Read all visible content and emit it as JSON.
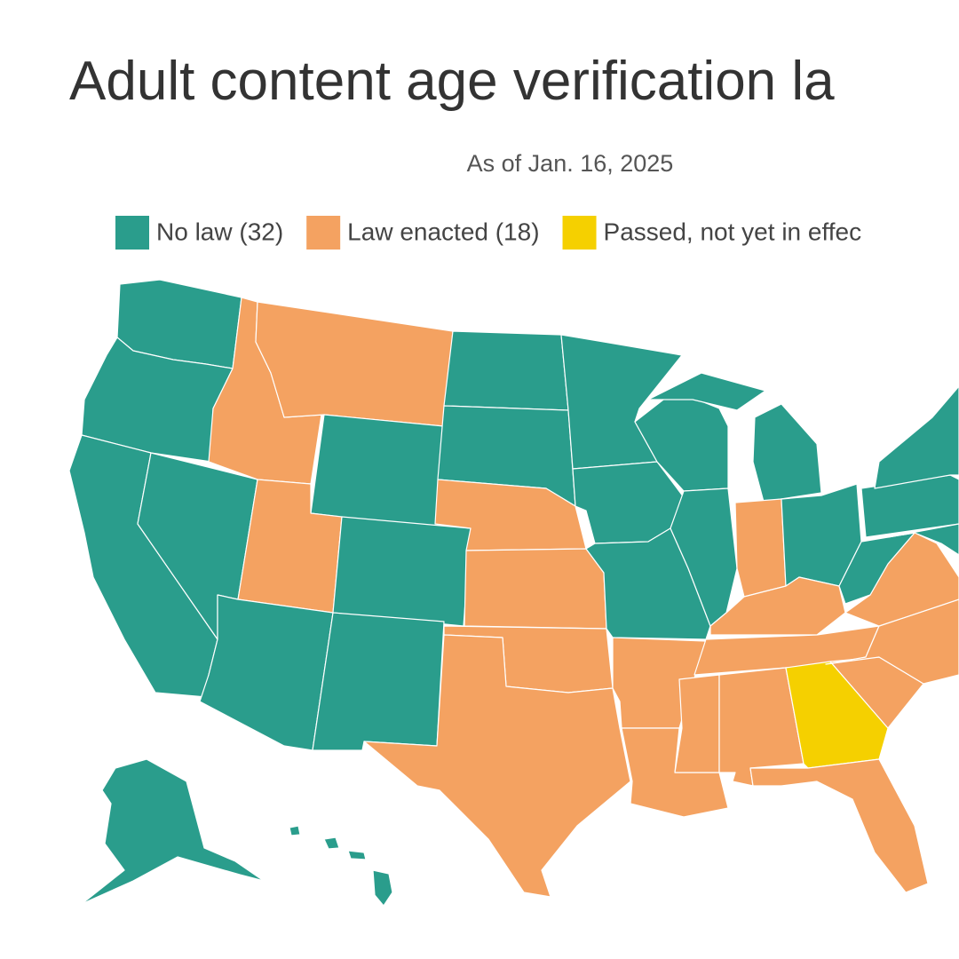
{
  "header": {
    "title": "Adult content age verification la",
    "subtitle": "As of Jan. 16, 2025"
  },
  "legend": {
    "items": [
      {
        "label": "No law (32)",
        "color": "#2a9d8c"
      },
      {
        "label": "Law enacted (18)",
        "color": "#f4a261"
      },
      {
        "label": "Passed, not yet in effec",
        "color": "#f5d000"
      }
    ]
  }
}
